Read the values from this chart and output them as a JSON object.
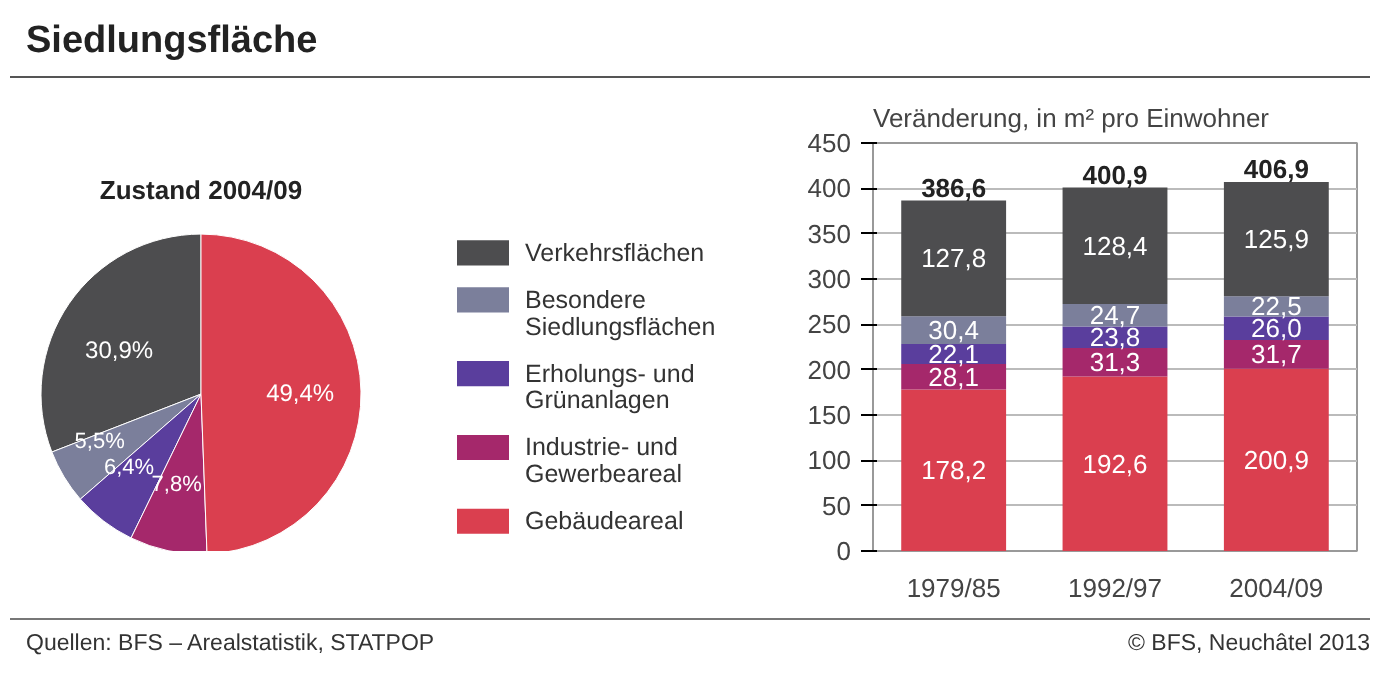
{
  "chart_data": [
    {
      "type": "pie",
      "title": "Siedlungsfläche",
      "subtitle": "Zustand 2004/09",
      "categories": [
        "Verkehrsflächen",
        "Besondere Siedlungsflächen",
        "Erholungs- und Grünanlagen",
        "Industrie- und Gewerbeareal",
        "Gebäudeareal"
      ],
      "values": [
        30.9,
        5.5,
        6.4,
        7.8,
        49.4
      ],
      "colors": [
        "#4d4d4f",
        "#7b7f9b",
        "#5a3e9d",
        "#a5286b",
        "#da3f4f"
      ],
      "value_labels": [
        "30,9%",
        "5,5%",
        "6,4%",
        "7,8%",
        "49,4%"
      ],
      "legend": "right",
      "annotations": [
        "Quellen: BFS – Arealstatistik, STATPOP",
        "© BFS, Neuchâtel 2013"
      ]
    },
    {
      "type": "bar",
      "stacked": true,
      "title": "Veränderung, in m² pro Einwohner",
      "categories": [
        "1979/85",
        "1992/97",
        "2004/09"
      ],
      "series": [
        {
          "color": "#da3f4f",
          "values": [
            178.2,
            192.6,
            200.9
          ],
          "value_labels": [
            "178,2",
            "192,6",
            "200,9"
          ]
        },
        {
          "color": "#a5286b",
          "values": [
            28.1,
            31.3,
            31.7
          ],
          "value_labels": [
            "28,1",
            "31,3",
            "31,7"
          ]
        },
        {
          "color": "#5a3e9d",
          "values": [
            22.1,
            23.8,
            26.0
          ],
          "value_labels": [
            "22,1",
            "23,8",
            "26,0"
          ]
        },
        {
          "color": "#7b7f9b",
          "values": [
            30.4,
            24.7,
            22.5
          ],
          "value_labels": [
            "30,4",
            "24,7",
            "22,5"
          ]
        },
        {
          "color": "#4d4d4f",
          "values": [
            127.8,
            128.4,
            125.9
          ],
          "value_labels": [
            "127,8",
            "128,4",
            "125,9"
          ]
        }
      ],
      "totals": [
        "386,6",
        "400,9",
        "406,9"
      ],
      "ylim": [
        0,
        450
      ],
      "yticks": [
        0,
        50,
        100,
        150,
        200,
        250,
        300,
        350,
        400,
        450
      ],
      "grid": "y"
    }
  ]
}
